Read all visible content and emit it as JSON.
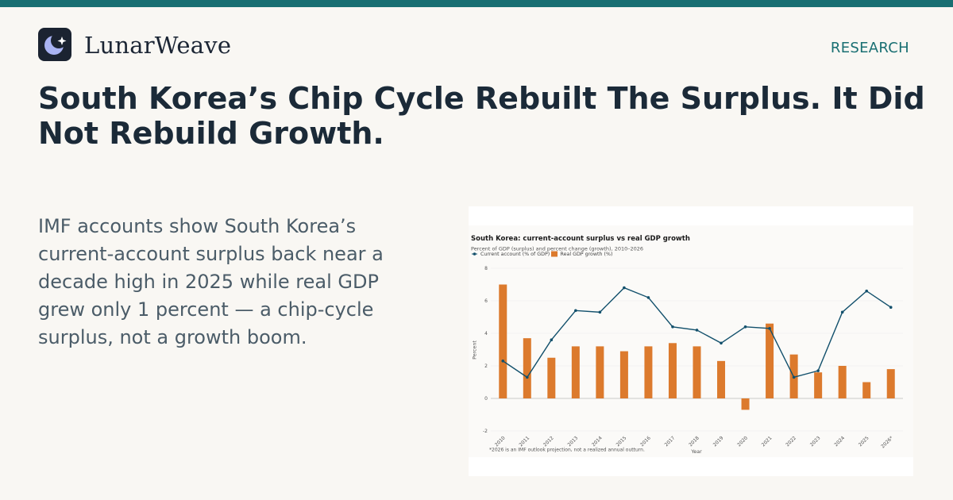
{
  "brand": {
    "name": "LunarWeave",
    "logo_icon": "crescent-moon-sparkle-icon"
  },
  "nav": {
    "research_label": "RESEARCH"
  },
  "headline": "South Korea’s Chip Cycle Rebuilt The Surplus. It Did Not Rebuild Growth.",
  "dek": "IMF accounts show South Korea’s current-account surplus back near a decade high in 2025 while real GDP grew only 1 percent — a chip-cycle surplus, not a growth boom.",
  "colors": {
    "accent": "#196f72",
    "bar": "#dc7a2d",
    "line": "#12506c",
    "background": "#f9f7f3"
  },
  "chart_data": {
    "type": "bar",
    "title": "South Korea: current-account surplus vs real GDP growth",
    "subtitle": "Percent of GDP (surplus) and percent change (growth), 2010–2026",
    "xlabel": "Year",
    "ylabel": "Percent",
    "ylim": [
      -2,
      8
    ],
    "yticks": [
      -2,
      0,
      2,
      4,
      6,
      8
    ],
    "grid": true,
    "legend_position": "top-left",
    "categories": [
      "2010",
      "2011",
      "2012",
      "2013",
      "2014",
      "2015",
      "2016",
      "2017",
      "2018",
      "2019",
      "2020",
      "2021",
      "2022",
      "2023",
      "2024",
      "2025",
      "2026*"
    ],
    "series": [
      {
        "name": "Current account (% of GDP)",
        "type": "line",
        "color": "#12506c",
        "values": [
          2.3,
          1.3,
          3.6,
          5.4,
          5.3,
          6.8,
          6.2,
          4.4,
          4.2,
          3.4,
          4.4,
          4.3,
          1.3,
          1.7,
          5.3,
          6.6,
          5.6
        ]
      },
      {
        "name": "Real GDP growth (%)",
        "type": "bar",
        "color": "#dc7a2d",
        "values": [
          7.0,
          3.7,
          2.5,
          3.2,
          3.2,
          2.9,
          3.2,
          3.4,
          3.2,
          2.3,
          -0.7,
          4.6,
          2.7,
          1.6,
          2.0,
          1.0,
          1.8
        ]
      }
    ],
    "note": "*2026 is an IMF outlook projection, not a realized annual outturn."
  }
}
